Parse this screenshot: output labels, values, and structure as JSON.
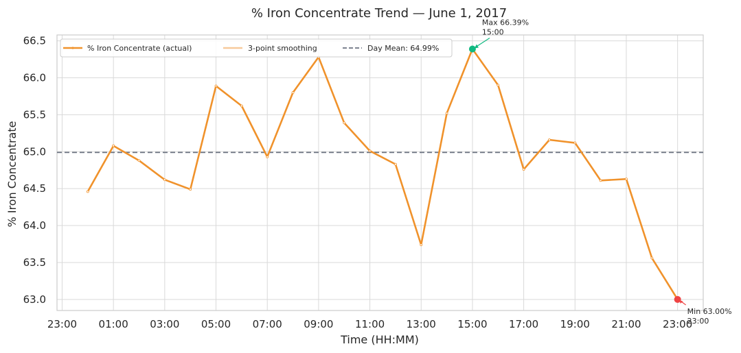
{
  "chart_data": {
    "type": "line",
    "title": "% Iron Concentrate Trend — June 1, 2017",
    "xlabel": "Time (HH:MM)",
    "ylabel": "% Iron Concentrate",
    "x_tick_labels": [
      "23:00",
      "01:00",
      "03:00",
      "05:00",
      "07:00",
      "09:00",
      "11:00",
      "13:00",
      "15:00",
      "17:00",
      "19:00",
      "21:00",
      "23:00"
    ],
    "y_ticks": [
      63.0,
      63.5,
      64.0,
      64.5,
      65.0,
      65.5,
      66.0,
      66.5
    ],
    "y_tick_labels": [
      "63.0",
      "63.5",
      "64.0",
      "64.5",
      "65.0",
      "65.5",
      "66.0",
      "66.5"
    ],
    "ylim": [
      62.85,
      66.58
    ],
    "xlim_hours": [
      -1.2,
      24.0
    ],
    "grid": true,
    "legend_position": "top-left",
    "x_hours": [
      0,
      1,
      2,
      3,
      4,
      5,
      6,
      7,
      8,
      9,
      10,
      11,
      12,
      13,
      14,
      15,
      16,
      17,
      18,
      19,
      20,
      21,
      22,
      23
    ],
    "series": [
      {
        "name": "% Iron Concentrate (actual)",
        "color": "#f0922b",
        "values": [
          64.46,
          65.08,
          64.88,
          64.62,
          64.49,
          65.89,
          65.62,
          64.93,
          65.8,
          66.28,
          65.39,
          65.01,
          64.83,
          63.74,
          65.52,
          66.39,
          65.9,
          64.76,
          65.16,
          65.12,
          64.61,
          64.63,
          63.56,
          63.0
        ]
      },
      {
        "name": "3-point smoothing",
        "color": "#f7c99a",
        "values": []
      }
    ],
    "reference_line": {
      "name": "Day Mean: 64.99%",
      "value": 64.99,
      "color": "#6b7280"
    },
    "annotations": {
      "max": {
        "line1": "Max 66.39%",
        "line2": "15:00",
        "hour": 15,
        "value": 66.39,
        "color": "#10b981"
      },
      "min": {
        "line1": "Min 63.00%",
        "line2": "23:00",
        "hour": 23,
        "value": 63.0,
        "color": "#ef4444"
      }
    }
  }
}
